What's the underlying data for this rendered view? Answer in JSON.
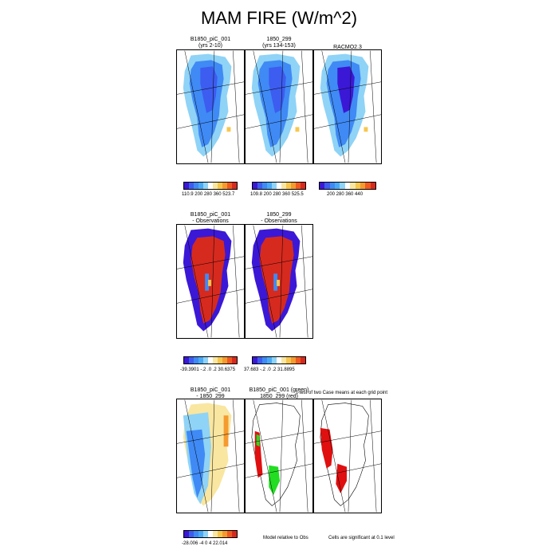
{
  "figure": {
    "title": "MAM FIRE (W/m^2)"
  },
  "rows": [
    {
      "panels": [
        {
          "title": "B1850_piC_001",
          "subtitle": "(yrs 2-10)",
          "map": "interior-low"
        },
        {
          "title": "1850_299",
          "subtitle": "(yrs 134-153)",
          "map": "interior-low"
        },
        {
          "title": "RACMO2.3",
          "subtitle": "",
          "map": "interior-lowest"
        }
      ],
      "colorbars": [
        {
          "colors": [
            "#3b18d6",
            "#3d5cf0",
            "#3f8af5",
            "#4aaaf7",
            "#8fd3f7",
            "#ffffff",
            "#f9e6a0",
            "#f7c64d",
            "#f59a2f",
            "#f05a1e",
            "#d62a1e"
          ],
          "ticks": "110.9 200  280  360       523.7"
        },
        {
          "colors": [
            "#3b18d6",
            "#3d5cf0",
            "#3f8af5",
            "#4aaaf7",
            "#8fd3f7",
            "#ffffff",
            "#f9e6a0",
            "#f7c64d",
            "#f59a2f",
            "#f05a1e",
            "#d62a1e"
          ],
          "ticks": "109.8 200  280  360       525.5"
        },
        {
          "colors": [
            "#3b18d6",
            "#3d5cf0",
            "#3f8af5",
            "#4aaaf7",
            "#8fd3f7",
            "#ffffff",
            "#f9e6a0",
            "#f7c64d",
            "#f59a2f",
            "#f05a1e",
            "#d62a1e"
          ],
          "ticks": "200   280   360   440"
        }
      ]
    },
    {
      "panels": [
        {
          "title": "B1850_piC_001",
          "subtitle": "- Observations",
          "map": "diff-red"
        },
        {
          "title": "1850_299",
          "subtitle": "- Observations",
          "map": "diff-red"
        }
      ],
      "colorbars": [
        {
          "colors": [
            "#3b18d6",
            "#3d5cf0",
            "#3f8af5",
            "#4aaaf7",
            "#8fd3f7",
            "#ffffff",
            "#f9e6a0",
            "#f7c64d",
            "#f59a2f",
            "#f05a1e",
            "#d62a1e"
          ],
          "ticks": "-39.3901  -.2  .0  .2     30.6375"
        },
        {
          "colors": [
            "#3b18d6",
            "#3d5cf0",
            "#3f8af5",
            "#4aaaf7",
            "#8fd3f7",
            "#ffffff",
            "#f9e6a0",
            "#f7c64d",
            "#f59a2f",
            "#f05a1e",
            "#d62a1e"
          ],
          "ticks": "37.683   -.2  .0  .2     31.8895"
        }
      ]
    },
    {
      "panels": [
        {
          "title": "B1850_piC_001",
          "subtitle": "- 1850_299",
          "map": "case-diff"
        },
        {
          "title": "B1850_piC_001 (green)",
          "subtitle": "1850_299 (red)",
          "map": "signif-green-red"
        },
        {
          "title": "",
          "subtitle": "",
          "map": "signif-red"
        }
      ],
      "overlay_text": "t-test of two Case means at each grid point",
      "colorbars": [
        {
          "colors": [
            "#3b18d6",
            "#3d5cf0",
            "#3f8af5",
            "#4aaaf7",
            "#8fd3f7",
            "#ffffff",
            "#f9e6a0",
            "#f7c64d",
            "#f59a2f",
            "#f05a1e",
            "#d62a1e"
          ],
          "ticks": "-28.006   -4   0   4    22.014"
        }
      ],
      "notes": [
        "Model relative to Obs",
        "Cells are significant at 0.1 level"
      ]
    }
  ],
  "chart_data": {
    "type": "heatmap",
    "title": "MAM FIRE (W/m^2)",
    "panels": [
      {
        "row": 1,
        "title": "B1850_piC_001 (yrs 2-10)",
        "range": [
          110.9,
          523.7
        ],
        "ticks": [
          200,
          280,
          360
        ]
      },
      {
        "row": 1,
        "title": "1850_299 (yrs 134-153)",
        "range": [
          109.8,
          525.5
        ],
        "ticks": [
          200,
          280,
          360
        ]
      },
      {
        "row": 1,
        "title": "RACMO2.3",
        "ticks": [
          200,
          280,
          360,
          440
        ]
      },
      {
        "row": 2,
        "title": "B1850_piC_001 - Observations",
        "range": [
          -39.3901,
          30.6375
        ],
        "ticks": [
          -0.2,
          0.0,
          0.2
        ]
      },
      {
        "row": 2,
        "title": "1850_299 - Observations",
        "range": [
          37.683,
          31.8895
        ],
        "ticks": [
          -0.2,
          0.0,
          0.2
        ]
      },
      {
        "row": 3,
        "title": "B1850_piC_001 - 1850_299",
        "range": [
          -28.006,
          22.014
        ],
        "ticks": [
          -4,
          0,
          4
        ]
      },
      {
        "row": 3,
        "title": "B1850_piC_001 (green) 1850_299 (red)",
        "note": "t-test of two Case means at each grid point"
      }
    ]
  }
}
